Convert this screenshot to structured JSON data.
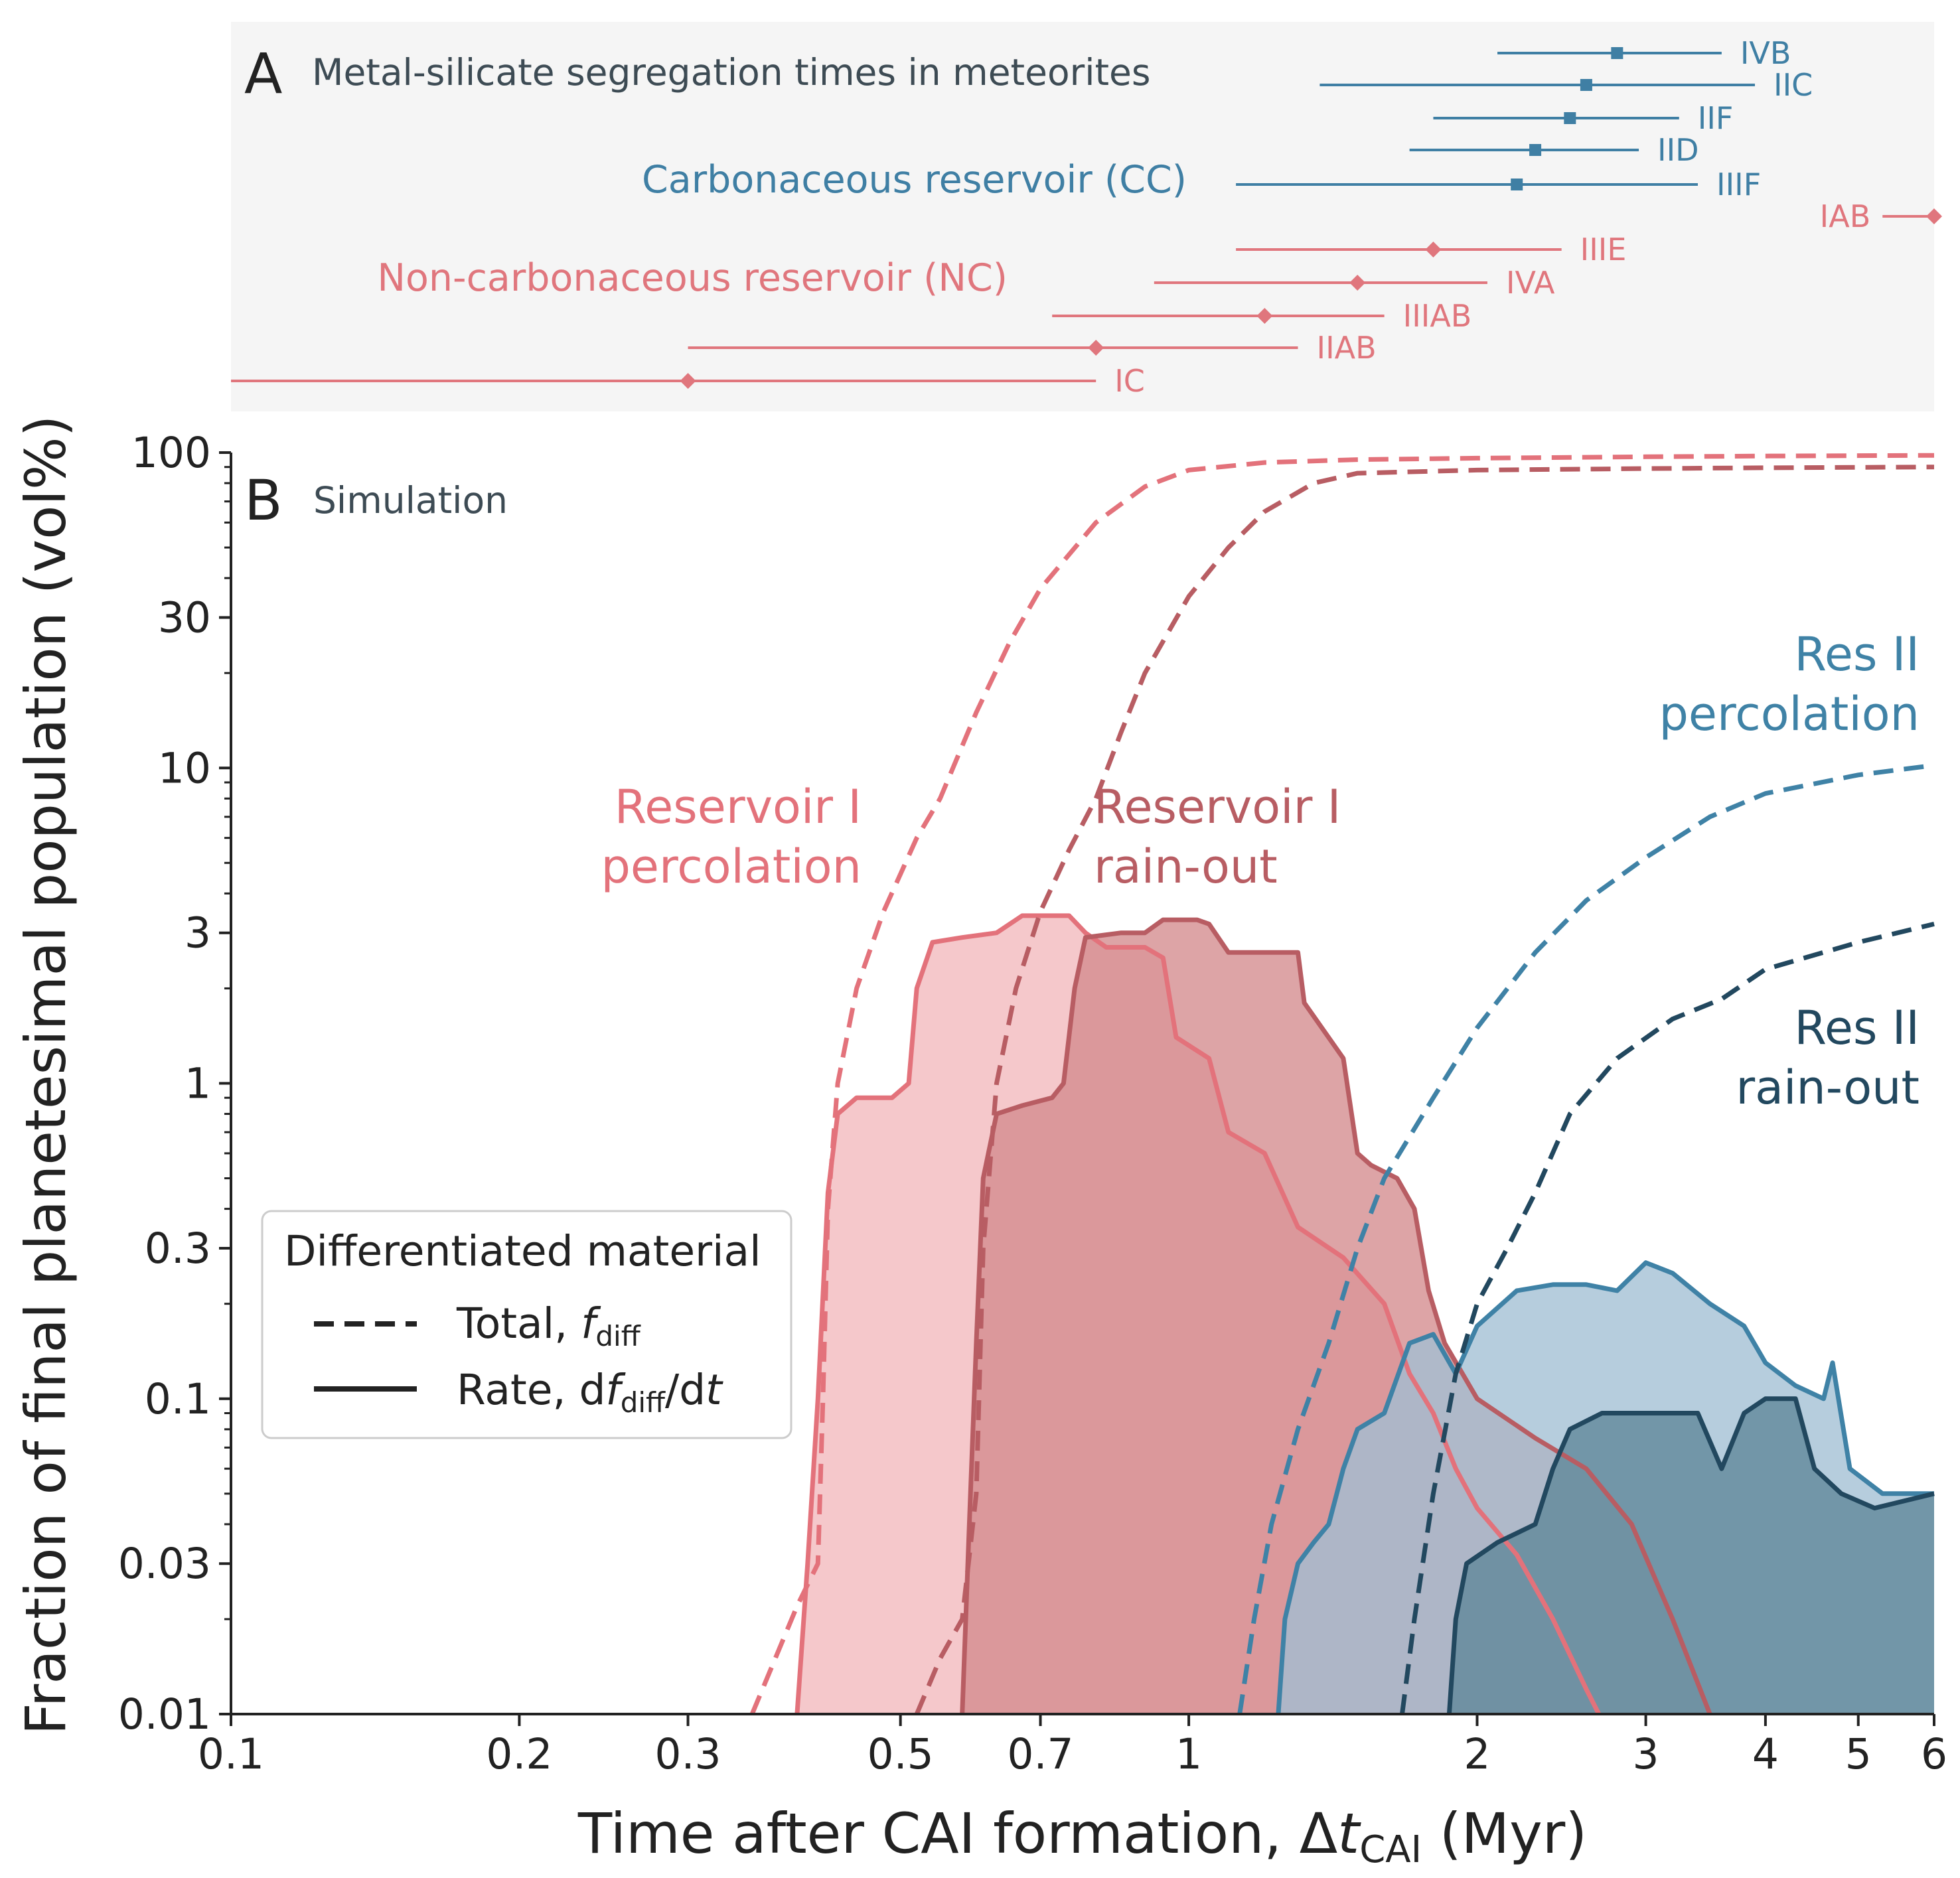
{
  "colors": {
    "res1_perc": "#e3727b",
    "res1_perc_fill": "#f2b9bc",
    "res1_rain": "#b85d63",
    "res1_rain_fill": "#d38a8d",
    "res2_perc": "#3f82a6",
    "res2_perc_fill": "#a1bfd4",
    "res2_rain": "#22485f",
    "res2_rain_fill": "#5f8698",
    "cc": "#3f7fa4",
    "nc": "#e0767d",
    "text": "#222222",
    "grey_text": "#3d4b54",
    "panel_bg": "#f5f5f5"
  },
  "panel_a": {
    "letter": "A",
    "title": "Metal-silicate segregation times in meteorites",
    "cc_label": "Carbonaceous reservoir (CC)",
    "nc_label": "Non-carbonaceous reservoir (NC)"
  },
  "panel_b": {
    "letter": "B",
    "title": "Simulation",
    "annotations": [
      {
        "text": [
          "Reservoir I",
          "percolation"
        ],
        "series": "res1_perc"
      },
      {
        "text": [
          "Reservoir I",
          "rain-out"
        ],
        "series": "res1_rain"
      },
      {
        "text": [
          "Res II",
          "percolation"
        ],
        "series": "res2_perc"
      },
      {
        "text": [
          "Res II",
          "rain-out"
        ],
        "series": "res2_rain"
      }
    ],
    "legend": {
      "title": "Differentiated material",
      "total_label": "Total, ",
      "total_sym": "f",
      "total_sub": "diff",
      "rate_label_pre": "Rate, d",
      "rate_sym": "f",
      "rate_sub": "diff",
      "rate_label_post": "/d",
      "rate_sym2": "t"
    }
  },
  "axes": {
    "xlabel_pre": "Time after CAI formation, Δ",
    "xlabel_sym": "t",
    "xlabel_sub": "CAI",
    "xlabel_post": " (Myr)",
    "ylabel": "Fraction of final planetesimal population (vol%)",
    "x_ticks": [
      {
        "v": 0.1,
        "label": "0.1"
      },
      {
        "v": 0.2,
        "label": "0.2"
      },
      {
        "v": 0.3,
        "label": "0.3"
      },
      {
        "v": 0.5,
        "label": "0.5"
      },
      {
        "v": 0.7,
        "label": "0.7"
      },
      {
        "v": 1,
        "label": "1"
      },
      {
        "v": 2,
        "label": "2"
      },
      {
        "v": 3,
        "label": "3"
      },
      {
        "v": 4,
        "label": "4"
      },
      {
        "v": 5,
        "label": "5"
      },
      {
        "v": 6,
        "label": "6"
      }
    ],
    "y_ticks": [
      {
        "v": 0.01,
        "label": "0.01"
      },
      {
        "v": 0.03,
        "label": "0.03"
      },
      {
        "v": 0.1,
        "label": "0.1"
      },
      {
        "v": 0.3,
        "label": "0.3"
      },
      {
        "v": 1,
        "label": "1"
      },
      {
        "v": 3,
        "label": "3"
      },
      {
        "v": 10,
        "label": "10"
      },
      {
        "v": 30,
        "label": "30"
      },
      {
        "v": 100,
        "label": "100"
      }
    ]
  },
  "chart_data": [
    {
      "type": "errorbar",
      "panel": "A",
      "title": "Metal-silicate segregation times in meteorites",
      "xscale": "log",
      "xlim": [
        0.1,
        6
      ],
      "series": [
        {
          "name": "Carbonaceous reservoir (CC)",
          "marker": "square",
          "points": [
            {
              "label": "IVB",
              "x": 2.8,
              "lo": 2.1,
              "hi": 3.6
            },
            {
              "label": "IIC",
              "x": 2.6,
              "lo": 1.37,
              "hi": 3.9
            },
            {
              "label": "IIF",
              "x": 2.5,
              "lo": 1.8,
              "hi": 3.25
            },
            {
              "label": "IID",
              "x": 2.3,
              "lo": 1.7,
              "hi": 2.95
            },
            {
              "label": "IIIF",
              "x": 2.2,
              "lo": 1.12,
              "hi": 3.4
            }
          ]
        },
        {
          "name": "Non-carbonaceous reservoir (NC)",
          "marker": "diamond",
          "points": [
            {
              "label": "IAB",
              "x": 6.0,
              "lo": 5.3,
              "hi": 6.0
            },
            {
              "label": "IIIE",
              "x": 1.8,
              "lo": 1.12,
              "hi": 2.45
            },
            {
              "label": "IVA",
              "x": 1.5,
              "lo": 0.92,
              "hi": 2.05
            },
            {
              "label": "IIIAB",
              "x": 1.2,
              "lo": 0.72,
              "hi": 1.6
            },
            {
              "label": "IIAB",
              "x": 0.8,
              "lo": 0.3,
              "hi": 1.3
            },
            {
              "label": "IC",
              "x": 0.3,
              "lo": 0.1,
              "hi": 0.8
            }
          ]
        }
      ]
    },
    {
      "type": "line",
      "panel": "B",
      "title": "Simulation",
      "xlabel": "Time after CAI formation, Δt_CAI (Myr)",
      "ylabel": "Fraction of final planetesimal population (vol%)",
      "xscale": "log",
      "yscale": "log",
      "xlim": [
        0.1,
        6
      ],
      "ylim": [
        0.01,
        100
      ],
      "legend": "lower-left",
      "series": [
        {
          "name": "Reservoir I percolation",
          "kind": "total",
          "style": "dashed",
          "color_key": "res1_perc",
          "points": [
            [
              0.35,
              0.01
            ],
            [
              0.37,
              0.015
            ],
            [
              0.39,
              0.022
            ],
            [
              0.41,
              0.03
            ],
            [
              0.415,
              0.1
            ],
            [
              0.42,
              0.4
            ],
            [
              0.43,
              1.0
            ],
            [
              0.45,
              2.0
            ],
            [
              0.48,
              3.5
            ],
            [
              0.52,
              6
            ],
            [
              0.55,
              8
            ],
            [
              0.6,
              15
            ],
            [
              0.65,
              25
            ],
            [
              0.7,
              37
            ],
            [
              0.8,
              60
            ],
            [
              0.9,
              78
            ],
            [
              1.0,
              88
            ],
            [
              1.2,
              93
            ],
            [
              1.5,
              95
            ],
            [
              2,
              96
            ],
            [
              3,
              97
            ],
            [
              4,
              97.5
            ],
            [
              6,
              98
            ]
          ]
        },
        {
          "name": "Reservoir I rain-out",
          "kind": "total",
          "style": "dashed",
          "color_key": "res1_rain",
          "points": [
            [
              0.52,
              0.01
            ],
            [
              0.55,
              0.015
            ],
            [
              0.58,
              0.02
            ],
            [
              0.6,
              0.05
            ],
            [
              0.61,
              0.3
            ],
            [
              0.63,
              1.0
            ],
            [
              0.66,
              2.0
            ],
            [
              0.7,
              3.5
            ],
            [
              0.75,
              5.5
            ],
            [
              0.8,
              8
            ],
            [
              0.85,
              13
            ],
            [
              0.9,
              20
            ],
            [
              1.0,
              35
            ],
            [
              1.1,
              50
            ],
            [
              1.2,
              65
            ],
            [
              1.35,
              80
            ],
            [
              1.5,
              86
            ],
            [
              2,
              88
            ],
            [
              3,
              89
            ],
            [
              4,
              89.5
            ],
            [
              6,
              90
            ]
          ]
        },
        {
          "name": "Res II percolation",
          "kind": "total",
          "style": "dashed",
          "color_key": "res2_perc",
          "points": [
            [
              1.13,
              0.01
            ],
            [
              1.17,
              0.02
            ],
            [
              1.22,
              0.04
            ],
            [
              1.3,
              0.08
            ],
            [
              1.4,
              0.15
            ],
            [
              1.5,
              0.3
            ],
            [
              1.6,
              0.5
            ],
            [
              1.8,
              0.9
            ],
            [
              2.0,
              1.5
            ],
            [
              2.3,
              2.6
            ],
            [
              2.6,
              3.8
            ],
            [
              3.0,
              5.2
            ],
            [
              3.5,
              7
            ],
            [
              4,
              8.3
            ],
            [
              5,
              9.5
            ],
            [
              6,
              10.2
            ]
          ]
        },
        {
          "name": "Res II rain-out",
          "kind": "total",
          "style": "dashed",
          "color_key": "res2_rain",
          "points": [
            [
              1.67,
              0.01
            ],
            [
              1.72,
              0.02
            ],
            [
              1.8,
              0.05
            ],
            [
              1.9,
              0.12
            ],
            [
              2.0,
              0.2
            ],
            [
              2.15,
              0.3
            ],
            [
              2.3,
              0.45
            ],
            [
              2.5,
              0.8
            ],
            [
              2.8,
              1.2
            ],
            [
              3.2,
              1.6
            ],
            [
              3.6,
              1.85
            ],
            [
              4.0,
              2.3
            ],
            [
              5,
              2.8
            ],
            [
              6,
              3.2
            ]
          ]
        },
        {
          "name": "Reservoir I percolation",
          "kind": "rate",
          "style": "solid",
          "color_key": "res1_perc",
          "points": [
            [
              0.39,
              0.01
            ],
            [
              0.4,
              0.03
            ],
            [
              0.41,
              0.1
            ],
            [
              0.42,
              0.45
            ],
            [
              0.43,
              0.8
            ],
            [
              0.45,
              0.9
            ],
            [
              0.49,
              0.9
            ],
            [
              0.51,
              1.0
            ],
            [
              0.52,
              2.0
            ],
            [
              0.54,
              2.8
            ],
            [
              0.58,
              2.9
            ],
            [
              0.63,
              3.0
            ],
            [
              0.67,
              3.4
            ],
            [
              0.75,
              3.4
            ],
            [
              0.78,
              3.0
            ],
            [
              0.82,
              2.7
            ],
            [
              0.9,
              2.7
            ],
            [
              0.94,
              2.5
            ],
            [
              0.97,
              1.4
            ],
            [
              1.05,
              1.2
            ],
            [
              1.1,
              0.7
            ],
            [
              1.2,
              0.6
            ],
            [
              1.3,
              0.35
            ],
            [
              1.45,
              0.28
            ],
            [
              1.6,
              0.2
            ],
            [
              1.7,
              0.12
            ],
            [
              1.8,
              0.09
            ],
            [
              1.9,
              0.06
            ],
            [
              2.0,
              0.045
            ],
            [
              2.2,
              0.032
            ],
            [
              2.4,
              0.02
            ],
            [
              2.6,
              0.012
            ],
            [
              2.68,
              0.01
            ]
          ]
        },
        {
          "name": "Reservoir I rain-out",
          "kind": "rate",
          "style": "solid",
          "color_key": "res1_rain",
          "points": [
            [
              0.58,
              0.01
            ],
            [
              0.59,
              0.04
            ],
            [
              0.6,
              0.15
            ],
            [
              0.61,
              0.5
            ],
            [
              0.63,
              0.8
            ],
            [
              0.67,
              0.85
            ],
            [
              0.72,
              0.9
            ],
            [
              0.74,
              1.0
            ],
            [
              0.76,
              2.0
            ],
            [
              0.78,
              2.9
            ],
            [
              0.85,
              3.0
            ],
            [
              0.9,
              3.0
            ],
            [
              0.94,
              3.3
            ],
            [
              1.02,
              3.3
            ],
            [
              1.05,
              3.2
            ],
            [
              1.1,
              2.6
            ],
            [
              1.3,
              2.6
            ],
            [
              1.32,
              1.8
            ],
            [
              1.45,
              1.2
            ],
            [
              1.5,
              0.6
            ],
            [
              1.55,
              0.55
            ],
            [
              1.65,
              0.5
            ],
            [
              1.72,
              0.4
            ],
            [
              1.78,
              0.22
            ],
            [
              1.85,
              0.15
            ],
            [
              2.0,
              0.1
            ],
            [
              2.3,
              0.075
            ],
            [
              2.6,
              0.06
            ],
            [
              2.9,
              0.04
            ],
            [
              3.2,
              0.02
            ],
            [
              3.5,
              0.01
            ]
          ]
        },
        {
          "name": "Res II percolation",
          "kind": "rate",
          "style": "solid",
          "color_key": "res2_perc",
          "points": [
            [
              1.24,
              0.01
            ],
            [
              1.26,
              0.02
            ],
            [
              1.3,
              0.03
            ],
            [
              1.35,
              0.035
            ],
            [
              1.4,
              0.04
            ],
            [
              1.45,
              0.06
            ],
            [
              1.5,
              0.08
            ],
            [
              1.6,
              0.09
            ],
            [
              1.7,
              0.15
            ],
            [
              1.8,
              0.16
            ],
            [
              1.9,
              0.12
            ],
            [
              2.0,
              0.17
            ],
            [
              2.2,
              0.22
            ],
            [
              2.4,
              0.23
            ],
            [
              2.6,
              0.23
            ],
            [
              2.8,
              0.22
            ],
            [
              3.0,
              0.27
            ],
            [
              3.2,
              0.25
            ],
            [
              3.5,
              0.2
            ],
            [
              3.8,
              0.17
            ],
            [
              4.0,
              0.13
            ],
            [
              4.3,
              0.11
            ],
            [
              4.6,
              0.1
            ],
            [
              4.7,
              0.13
            ],
            [
              4.9,
              0.06
            ],
            [
              5.3,
              0.05
            ],
            [
              6,
              0.05
            ]
          ]
        },
        {
          "name": "Res II rain-out",
          "kind": "rate",
          "style": "solid",
          "color_key": "res2_rain",
          "points": [
            [
              1.87,
              0.01
            ],
            [
              1.9,
              0.02
            ],
            [
              1.95,
              0.03
            ],
            [
              2.1,
              0.035
            ],
            [
              2.3,
              0.04
            ],
            [
              2.4,
              0.06
            ],
            [
              2.5,
              0.08
            ],
            [
              2.7,
              0.09
            ],
            [
              3.0,
              0.09
            ],
            [
              3.2,
              0.09
            ],
            [
              3.4,
              0.09
            ],
            [
              3.6,
              0.06
            ],
            [
              3.8,
              0.09
            ],
            [
              4.0,
              0.1
            ],
            [
              4.3,
              0.1
            ],
            [
              4.5,
              0.06
            ],
            [
              4.8,
              0.05
            ],
            [
              5.2,
              0.045
            ],
            [
              6,
              0.05
            ]
          ]
        }
      ]
    }
  ]
}
